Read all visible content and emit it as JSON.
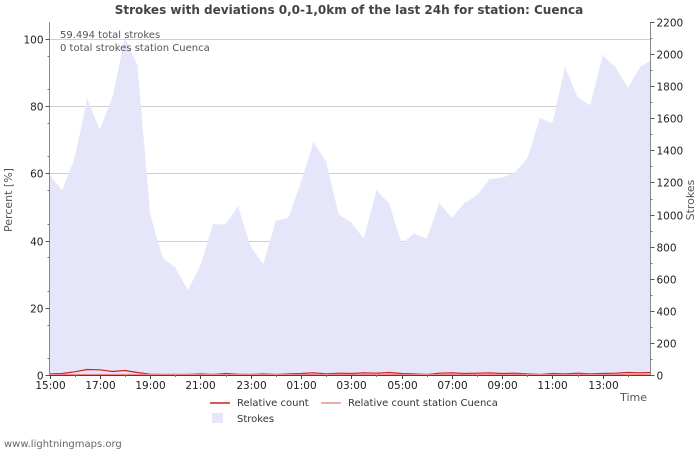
{
  "chart_data": {
    "type": "area",
    "title": "Strokes with deviations 0,0-1,0km of the last 24h for station: Cuenca",
    "ylabel_left": "Percent   [%]",
    "ylabel_right": "Strokes",
    "xlabel": "Time",
    "left_ylim": [
      0,
      105
    ],
    "right_ylim": [
      0,
      2200
    ],
    "left_ticks": [
      0,
      20,
      40,
      60,
      80,
      100
    ],
    "right_ticks": [
      0,
      200,
      400,
      600,
      800,
      1000,
      1200,
      1400,
      1600,
      1800,
      2000,
      2200
    ],
    "x_range_hours": [
      0,
      23.9
    ],
    "x_ticks": [
      {
        "hour": 0,
        "label": "15:00"
      },
      {
        "hour": 2,
        "label": "17:00"
      },
      {
        "hour": 4,
        "label": "19:00"
      },
      {
        "hour": 6,
        "label": "21:00"
      },
      {
        "hour": 8,
        "label": "23:00"
      },
      {
        "hour": 10,
        "label": "01:00"
      },
      {
        "hour": 12,
        "label": "03:00"
      },
      {
        "hour": 14,
        "label": "05:00"
      },
      {
        "hour": 16,
        "label": "07:00"
      },
      {
        "hour": 18,
        "label": "09:00"
      },
      {
        "hour": 20,
        "label": "11:00"
      },
      {
        "hour": 22,
        "label": "13:00"
      }
    ],
    "grid": true,
    "annotations": [
      "59.494 total strokes",
      "0 total strokes station Cuenca"
    ],
    "legend": [
      {
        "name": "Relative count",
        "kind": "line",
        "color": "#cc2222"
      },
      {
        "name": "Relative count station Cuenca",
        "kind": "line",
        "color": "#f08a8a"
      },
      {
        "name": "Strokes",
        "kind": "area",
        "color": "#e6e6fa"
      }
    ],
    "series": [
      {
        "name": "Strokes",
        "axis": "right",
        "color": "#e6e6fa",
        "points": [
          [
            0,
            1250
          ],
          [
            0.5,
            1150
          ],
          [
            1,
            1350
          ],
          [
            1.5,
            1720
          ],
          [
            2,
            1530
          ],
          [
            2.5,
            1730
          ],
          [
            3,
            2100
          ],
          [
            3.5,
            1930
          ],
          [
            4,
            1000
          ],
          [
            4.5,
            730
          ],
          [
            5,
            670
          ],
          [
            5.5,
            530
          ],
          [
            6,
            680
          ],
          [
            6.5,
            940
          ],
          [
            7,
            940
          ],
          [
            7.5,
            1050
          ],
          [
            8,
            800
          ],
          [
            8.5,
            690
          ],
          [
            9,
            960
          ],
          [
            9.5,
            980
          ],
          [
            10,
            1200
          ],
          [
            10.5,
            1450
          ],
          [
            11,
            1330
          ],
          [
            11.5,
            1000
          ],
          [
            12,
            950
          ],
          [
            12.5,
            850
          ],
          [
            13,
            1150
          ],
          [
            13.5,
            1070
          ],
          [
            14,
            820
          ],
          [
            14.5,
            880
          ],
          [
            15,
            850
          ],
          [
            15.5,
            1070
          ],
          [
            16,
            980
          ],
          [
            16.5,
            1070
          ],
          [
            17,
            1120
          ],
          [
            17.5,
            1220
          ],
          [
            18,
            1230
          ],
          [
            18.5,
            1260
          ],
          [
            19,
            1350
          ],
          [
            19.5,
            1600
          ],
          [
            20,
            1570
          ],
          [
            20.5,
            1920
          ],
          [
            21,
            1730
          ],
          [
            21.5,
            1680
          ],
          [
            22,
            1990
          ],
          [
            22.5,
            1920
          ],
          [
            23,
            1790
          ],
          [
            23.5,
            1920
          ],
          [
            23.9,
            1960
          ]
        ]
      },
      {
        "name": "Relative count",
        "axis": "left",
        "color": "#cc2222",
        "points": [
          [
            0,
            0.2
          ],
          [
            0.5,
            0.3
          ],
          [
            1,
            0.8
          ],
          [
            1.5,
            1.5
          ],
          [
            2,
            1.4
          ],
          [
            2.5,
            0.9
          ],
          [
            3,
            1.2
          ],
          [
            3.5,
            0.6
          ],
          [
            4,
            0.1
          ],
          [
            4.5,
            0
          ],
          [
            5,
            0
          ],
          [
            5.5,
            0
          ],
          [
            6,
            0.2
          ],
          [
            6.5,
            0
          ],
          [
            7,
            0.3
          ],
          [
            7.5,
            0.1
          ],
          [
            8,
            0
          ],
          [
            8.5,
            0.2
          ],
          [
            9,
            0
          ],
          [
            9.5,
            0.2
          ],
          [
            10,
            0.3
          ],
          [
            10.5,
            0.5
          ],
          [
            11,
            0.2
          ],
          [
            11.5,
            0.4
          ],
          [
            12,
            0.3
          ],
          [
            12.5,
            0.5
          ],
          [
            13,
            0.4
          ],
          [
            13.5,
            0.6
          ],
          [
            14,
            0.3
          ],
          [
            14.5,
            0.2
          ],
          [
            15,
            0
          ],
          [
            15.5,
            0.4
          ],
          [
            16,
            0.5
          ],
          [
            16.5,
            0.3
          ],
          [
            17,
            0.4
          ],
          [
            17.5,
            0.5
          ],
          [
            18,
            0.3
          ],
          [
            18.5,
            0.4
          ],
          [
            19,
            0.2
          ],
          [
            19.5,
            0
          ],
          [
            20,
            0.3
          ],
          [
            20.5,
            0.2
          ],
          [
            21,
            0.4
          ],
          [
            21.5,
            0.2
          ],
          [
            22,
            0.3
          ],
          [
            22.5,
            0.4
          ],
          [
            23,
            0.6
          ],
          [
            23.5,
            0.5
          ],
          [
            23.9,
            0.6
          ]
        ]
      },
      {
        "name": "Relative count station Cuenca",
        "axis": "left",
        "color": "#f08a8a",
        "points": [
          [
            0,
            0
          ],
          [
            23.9,
            0
          ]
        ]
      }
    ]
  },
  "footer": {
    "credit": "www.lightningmaps.org"
  }
}
